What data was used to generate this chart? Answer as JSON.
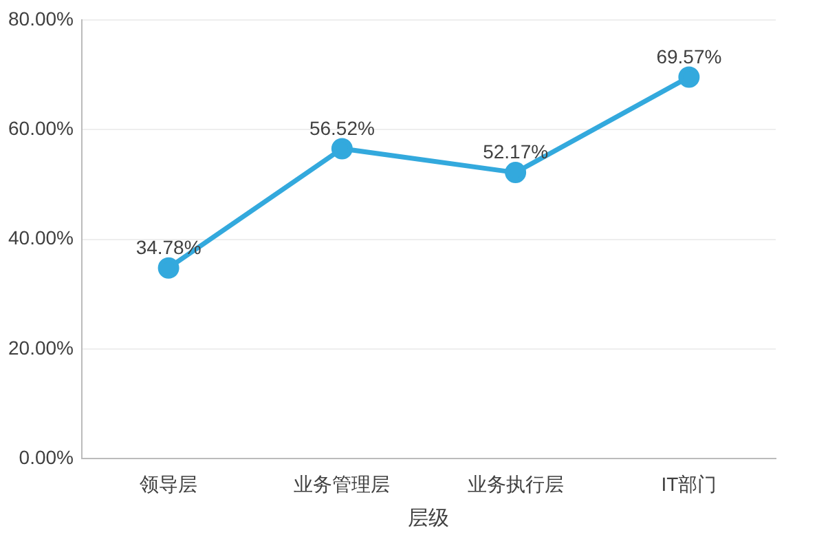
{
  "chart_data": {
    "type": "line",
    "xlabel": "层级",
    "categories": [
      "领导层",
      "业务管理层",
      "业务执行层",
      "IT部门"
    ],
    "series": [
      {
        "color": "#33a9dd",
        "values": [
          34.78,
          56.52,
          52.17,
          69.57
        ],
        "value_labels": [
          "34.78%",
          "56.52%",
          "52.17%",
          "69.57%"
        ]
      }
    ],
    "ylim": [
      0,
      80
    ],
    "yticks": [
      {
        "value": 0,
        "label": "0.00%"
      },
      {
        "value": 20,
        "label": "20.00%"
      },
      {
        "value": 40,
        "label": "40.00%"
      },
      {
        "value": 60,
        "label": "60.00%"
      },
      {
        "value": 80,
        "label": "80.00%"
      }
    ],
    "grid": "y",
    "marker": "circle",
    "line_style": "solid",
    "legend": false
  }
}
